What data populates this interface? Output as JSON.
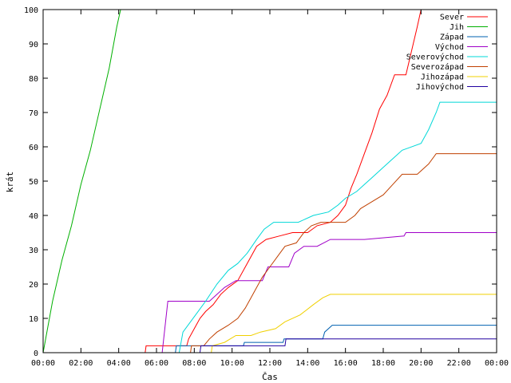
{
  "chart_data": {
    "type": "line",
    "title": "",
    "xlabel": "Čas",
    "ylabel": "krát",
    "xlim": [
      0,
      24
    ],
    "ylim": [
      0,
      100
    ],
    "grid": false,
    "legend_position": "top-right",
    "x_ticks": [
      "00:00",
      "02:00",
      "04:00",
      "06:00",
      "08:00",
      "10:00",
      "12:00",
      "14:00",
      "16:00",
      "18:00",
      "20:00",
      "22:00",
      "00:00"
    ],
    "y_ticks": [
      0,
      10,
      20,
      30,
      40,
      50,
      60,
      70,
      80,
      90,
      100
    ],
    "series": [
      {
        "name": "Sever",
        "color": "#ff0000",
        "points": [
          [
            0,
            0
          ],
          [
            5.4,
            0
          ],
          [
            5.45,
            2
          ],
          [
            7.6,
            2
          ],
          [
            7.7,
            4
          ],
          [
            8.0,
            7
          ],
          [
            8.3,
            10
          ],
          [
            8.6,
            12
          ],
          [
            9.0,
            14
          ],
          [
            9.4,
            17
          ],
          [
            9.8,
            19
          ],
          [
            10.3,
            21
          ],
          [
            10.8,
            26
          ],
          [
            11.3,
            31
          ],
          [
            11.8,
            33
          ],
          [
            12.5,
            34
          ],
          [
            13.2,
            35
          ],
          [
            14.0,
            35
          ],
          [
            14.5,
            37
          ],
          [
            15.2,
            38
          ],
          [
            15.6,
            40
          ],
          [
            16.0,
            43
          ],
          [
            16.3,
            48
          ],
          [
            16.6,
            52
          ],
          [
            17.0,
            58
          ],
          [
            17.4,
            64
          ],
          [
            17.8,
            71
          ],
          [
            18.2,
            75
          ],
          [
            18.6,
            81
          ],
          [
            19.2,
            81
          ],
          [
            19.5,
            88
          ],
          [
            19.8,
            95
          ],
          [
            20.0,
            100
          ],
          [
            24,
            100
          ]
        ]
      },
      {
        "name": "Jih",
        "color": "#00b000",
        "points": [
          [
            0,
            0
          ],
          [
            0.5,
            15
          ],
          [
            1.0,
            27
          ],
          [
            1.5,
            37
          ],
          [
            2.0,
            49
          ],
          [
            2.5,
            59
          ],
          [
            3.0,
            71
          ],
          [
            3.5,
            83
          ],
          [
            3.9,
            95
          ],
          [
            4.1,
            100
          ],
          [
            24,
            100
          ]
        ]
      },
      {
        "name": "Západ",
        "color": "#0060b0",
        "points": [
          [
            0,
            0
          ],
          [
            7.0,
            0
          ],
          [
            7.05,
            2
          ],
          [
            10.6,
            2
          ],
          [
            10.65,
            3
          ],
          [
            12.7,
            3
          ],
          [
            12.75,
            4
          ],
          [
            14.8,
            4
          ],
          [
            14.9,
            6
          ],
          [
            15.3,
            8
          ],
          [
            24,
            8
          ]
        ]
      },
      {
        "name": "Východ",
        "color": "#a000c8",
        "points": [
          [
            0,
            0
          ],
          [
            6.3,
            0
          ],
          [
            6.6,
            15
          ],
          [
            8.8,
            15
          ],
          [
            9.2,
            17
          ],
          [
            9.6,
            19
          ],
          [
            10.2,
            21
          ],
          [
            11.6,
            21
          ],
          [
            11.9,
            25
          ],
          [
            13.0,
            25
          ],
          [
            13.3,
            29
          ],
          [
            13.8,
            31
          ],
          [
            14.5,
            31
          ],
          [
            15.2,
            33
          ],
          [
            17.0,
            33
          ],
          [
            19.1,
            34
          ],
          [
            19.2,
            35
          ],
          [
            24,
            35
          ]
        ]
      },
      {
        "name": "Severovýchod",
        "color": "#00d8d8",
        "points": [
          [
            0,
            0
          ],
          [
            7.2,
            0
          ],
          [
            7.4,
            6
          ],
          [
            7.8,
            9
          ],
          [
            8.2,
            12
          ],
          [
            8.6,
            15
          ],
          [
            9.2,
            20
          ],
          [
            9.8,
            24
          ],
          [
            10.3,
            26
          ],
          [
            10.8,
            29
          ],
          [
            11.3,
            33
          ],
          [
            11.7,
            36
          ],
          [
            12.2,
            38
          ],
          [
            13.5,
            38
          ],
          [
            14.3,
            40
          ],
          [
            15.1,
            41
          ],
          [
            15.6,
            43
          ],
          [
            16.0,
            45
          ],
          [
            16.6,
            47
          ],
          [
            17.0,
            49
          ],
          [
            17.4,
            51
          ],
          [
            18.0,
            54
          ],
          [
            18.6,
            57
          ],
          [
            19.0,
            59
          ],
          [
            20.0,
            61
          ],
          [
            20.4,
            65
          ],
          [
            20.8,
            70
          ],
          [
            21.0,
            73
          ],
          [
            24,
            73
          ]
        ]
      },
      {
        "name": "Severozápad",
        "color": "#c04000",
        "points": [
          [
            0,
            0
          ],
          [
            7.8,
            0
          ],
          [
            7.85,
            2
          ],
          [
            8.5,
            2
          ],
          [
            8.8,
            4
          ],
          [
            9.2,
            6
          ],
          [
            9.8,
            8
          ],
          [
            10.3,
            10
          ],
          [
            10.7,
            13
          ],
          [
            11.0,
            16
          ],
          [
            11.3,
            19
          ],
          [
            11.6,
            22
          ],
          [
            12.0,
            25
          ],
          [
            12.4,
            28
          ],
          [
            12.8,
            31
          ],
          [
            13.4,
            32
          ],
          [
            13.8,
            35
          ],
          [
            14.2,
            37
          ],
          [
            14.7,
            38
          ],
          [
            15.4,
            38
          ],
          [
            16.0,
            38
          ],
          [
            16.5,
            40
          ],
          [
            16.8,
            42
          ],
          [
            17.4,
            44
          ],
          [
            18.0,
            46
          ],
          [
            18.5,
            49
          ],
          [
            19.0,
            52
          ],
          [
            19.8,
            52
          ],
          [
            20.4,
            55
          ],
          [
            20.8,
            58
          ],
          [
            24,
            58
          ]
        ]
      },
      {
        "name": "Jihozápad",
        "color": "#f0d000",
        "points": [
          [
            0,
            0
          ],
          [
            8.9,
            0
          ],
          [
            8.95,
            2
          ],
          [
            9.6,
            3
          ],
          [
            10.2,
            5
          ],
          [
            11.0,
            5
          ],
          [
            11.5,
            6
          ],
          [
            12.3,
            7
          ],
          [
            12.8,
            9
          ],
          [
            13.6,
            11
          ],
          [
            14.3,
            14
          ],
          [
            14.8,
            16
          ],
          [
            15.2,
            17
          ],
          [
            24,
            17
          ]
        ]
      },
      {
        "name": "Jihovýchod",
        "color": "#2000a0",
        "points": [
          [
            0,
            0
          ],
          [
            8.3,
            0
          ],
          [
            8.35,
            2
          ],
          [
            12.8,
            2
          ],
          [
            12.85,
            4
          ],
          [
            24,
            4
          ]
        ]
      }
    ]
  }
}
